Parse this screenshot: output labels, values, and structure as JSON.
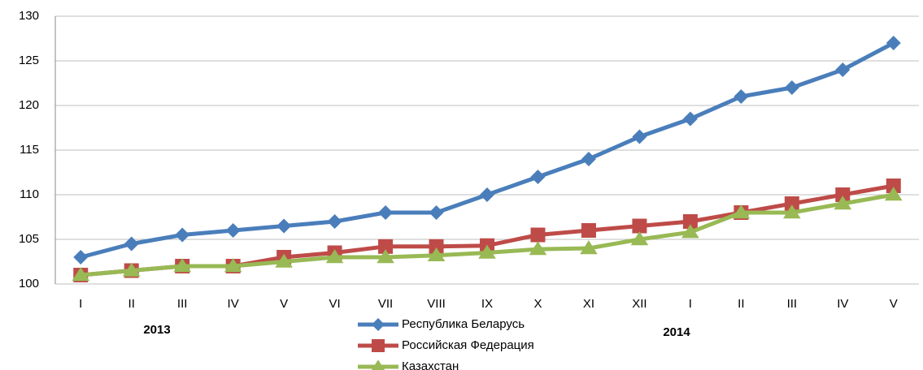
{
  "chart_data": {
    "type": "line",
    "categories": [
      "I",
      "II",
      "III",
      "IV",
      "V",
      "VI",
      "VII",
      "VIII",
      "IX",
      "X",
      "XI",
      "XII",
      "I",
      "II",
      "III",
      "IV",
      "V"
    ],
    "annotations": [
      "2013",
      "2014"
    ],
    "series": [
      {
        "name": "Республика Беларусь",
        "color": "#4a7ebb",
        "marker": "diamond",
        "values": [
          103,
          104.5,
          105.5,
          106,
          106.5,
          107,
          108,
          108,
          110,
          112,
          114,
          116.5,
          118.5,
          121,
          122,
          124,
          127
        ]
      },
      {
        "name": "Российская Федерация",
        "color": "#be4b48",
        "marker": "square",
        "values": [
          101,
          101.5,
          102,
          102,
          103,
          103.5,
          104.2,
          104.2,
          104.3,
          105.5,
          106,
          106.5,
          107,
          108,
          109,
          110,
          111
        ]
      },
      {
        "name": "Казахстан",
        "color": "#98b954",
        "marker": "triangle",
        "values": [
          101,
          101.5,
          102,
          102,
          102.5,
          103,
          103,
          103.2,
          103.5,
          103.9,
          104,
          105,
          105.8,
          108,
          108,
          109,
          110
        ]
      }
    ],
    "ylim": [
      100,
      130
    ],
    "yticks": [
      100,
      105,
      110,
      115,
      120,
      125,
      130
    ],
    "grid": true,
    "legend": "bottom"
  }
}
